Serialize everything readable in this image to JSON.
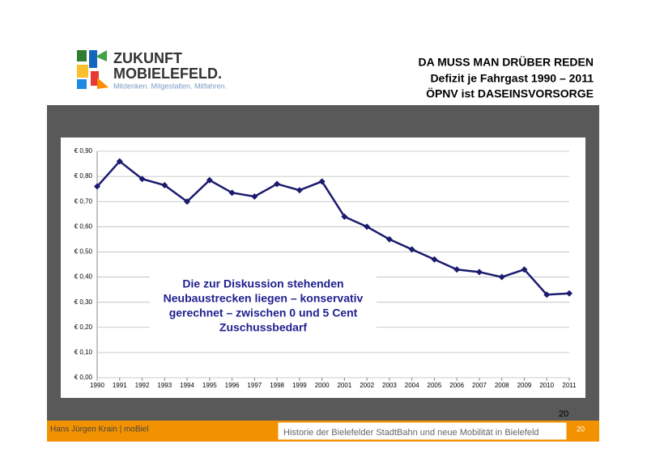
{
  "header": {
    "logo": {
      "line1": "ZUKUNFT",
      "line2": "MOBIELEFELD.",
      "tagline": "Mitdenken. Mitgestalten. Mitfahren."
    },
    "title": "DA MUSS MAN DRÜBER REDEN",
    "subtitle1": "Defizit je Fahrgast 1990 – 2011",
    "subtitle2": "ÖPNV ist DASEINSVORSORGE"
  },
  "chart_data": {
    "type": "line",
    "categories": [
      "1990",
      "1991",
      "1992",
      "1993",
      "1994",
      "1995",
      "1996",
      "1997",
      "1998",
      "1999",
      "2000",
      "2001",
      "2002",
      "2003",
      "2004",
      "2005",
      "2006",
      "2007",
      "2008",
      "2009",
      "2010",
      "2011"
    ],
    "values": [
      0.76,
      0.86,
      0.79,
      0.765,
      0.7,
      0.785,
      0.735,
      0.72,
      0.77,
      0.745,
      0.78,
      0.64,
      0.6,
      0.55,
      0.51,
      0.47,
      0.43,
      0.42,
      0.4,
      0.43,
      0.33,
      0.335
    ],
    "color": "#1a1a6e",
    "ylim": [
      0,
      0.9
    ],
    "yticks": [
      {
        "value": 0,
        "label": "€ 0,00"
      },
      {
        "value": 0.1,
        "label": "€ 0,10"
      },
      {
        "value": 0.2,
        "label": "€ 0,20"
      },
      {
        "value": 0.3,
        "label": "€ 0,30"
      },
      {
        "value": 0.4,
        "label": "€ 0,40"
      },
      {
        "value": 0.5,
        "label": "€ 0,50"
      },
      {
        "value": 0.6,
        "label": "€ 0,60"
      },
      {
        "value": 0.7,
        "label": "€ 0,70"
      },
      {
        "value": 0.8,
        "label": "€ 0,80"
      },
      {
        "value": 0.9,
        "label": "€ 0,90"
      }
    ],
    "grid": true,
    "annotation": [
      "Die zur Diskussion stehenden",
      "Neubaustrecken liegen – konservativ",
      "gerechnet – zwischen 0 und 5 Cent",
      "Zuschussbedarf"
    ]
  },
  "footer": {
    "page_top": "20",
    "author": "Hans Jürgen Krain | moBiel",
    "talk": "Historie der Bielefelder StadtBahn und neue Mobilität in Bielefeld",
    "page": "20"
  }
}
